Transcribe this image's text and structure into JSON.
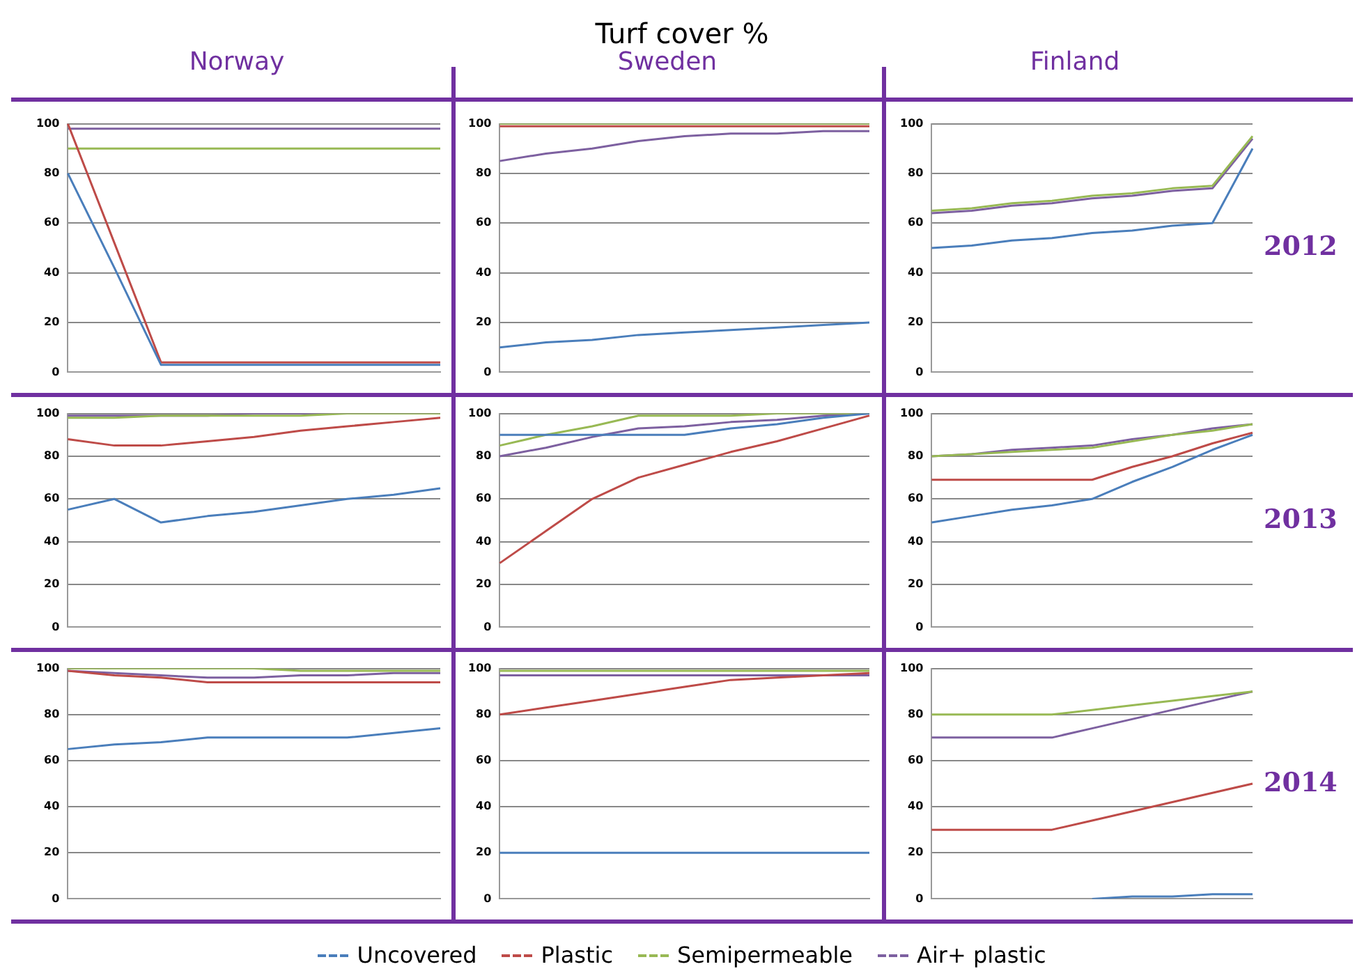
{
  "chart_data": [
    {
      "type": "line",
      "title": "Norway",
      "annotations": [
        "Turf cover %"
      ],
      "categories": [
        null,
        null,
        null,
        null,
        null,
        null,
        null,
        null,
        null
      ],
      "ylim": [
        0,
        100
      ],
      "yticks": [
        0,
        20,
        40,
        60,
        80,
        100
      ],
      "grid": "y",
      "tick_labels": "y",
      "series": [
        {
          "color": "#4a7ebb",
          "values": [
            80,
            42,
            3,
            3,
            3,
            3,
            3,
            3,
            3
          ]
        },
        {
          "color": "#be4b48",
          "values": [
            100,
            52,
            4,
            4,
            4,
            4,
            4,
            4,
            4
          ]
        },
        {
          "color": "#98b954",
          "values": [
            90,
            90,
            90,
            90,
            90,
            90,
            90,
            90,
            90
          ]
        },
        {
          "color": "#7d60a0",
          "values": [
            98,
            98,
            98,
            98,
            98,
            98,
            98,
            98,
            98
          ]
        }
      ]
    },
    {
      "type": "line",
      "title": "Sweden",
      "categories": [
        null,
        null,
        null,
        null,
        null,
        null,
        null,
        null,
        null
      ],
      "ylim": [
        0,
        100
      ],
      "yticks": [
        0,
        20,
        40,
        60,
        80,
        100
      ],
      "grid": "y",
      "tick_labels": "y",
      "series": [
        {
          "color": "#4a7ebb",
          "values": [
            10,
            12,
            13,
            15,
            16,
            17,
            18,
            19,
            20
          ]
        },
        {
          "color": "#be4b48",
          "values": [
            99,
            99,
            99,
            99,
            99,
            99,
            99,
            99,
            99
          ]
        },
        {
          "color": "#98b954",
          "values": [
            100,
            100,
            100,
            100,
            100,
            100,
            100,
            100,
            100
          ]
        },
        {
          "color": "#7d60a0",
          "values": [
            85,
            88,
            90,
            93,
            95,
            96,
            96,
            97,
            97
          ]
        }
      ]
    },
    {
      "type": "line",
      "title": "Finland",
      "annotations": [
        "2012"
      ],
      "categories": [
        null,
        null,
        null,
        null,
        null,
        null,
        null,
        null,
        null
      ],
      "ylim": [
        0,
        100
      ],
      "yticks": [
        0,
        20,
        40,
        60,
        80,
        100
      ],
      "grid": "y",
      "tick_labels": "y",
      "series": [
        {
          "color": "#4a7ebb",
          "values": [
            50,
            51,
            53,
            54,
            56,
            57,
            59,
            60,
            90
          ]
        },
        {
          "color": "#98b954",
          "values": [
            65,
            66,
            68,
            69,
            71,
            72,
            74,
            75,
            95
          ]
        },
        {
          "color": "#7d60a0",
          "values": [
            64,
            65,
            67,
            68,
            70,
            71,
            73,
            74,
            94
          ]
        }
      ]
    },
    {
      "type": "line",
      "categories": [
        null,
        null,
        null,
        null,
        null,
        null,
        null,
        null,
        null
      ],
      "ylim": [
        0,
        100
      ],
      "yticks": [
        0,
        20,
        40,
        60,
        80,
        100
      ],
      "grid": "y",
      "tick_labels": "y",
      "series": [
        {
          "color": "#4a7ebb",
          "values": [
            55,
            60,
            49,
            52,
            54,
            57,
            60,
            62,
            65
          ]
        },
        {
          "color": "#be4b48",
          "values": [
            88,
            85,
            85,
            87,
            89,
            92,
            94,
            96,
            98
          ]
        },
        {
          "color": "#98b954",
          "values": [
            98,
            98,
            99,
            99,
            99,
            99,
            100,
            100,
            100
          ]
        },
        {
          "color": "#7d60a0",
          "values": [
            99,
            99,
            99,
            99,
            100,
            100,
            100,
            100,
            100
          ]
        }
      ]
    },
    {
      "type": "line",
      "categories": [
        null,
        null,
        null,
        null,
        null,
        null,
        null,
        null,
        null
      ],
      "ylim": [
        0,
        100
      ],
      "yticks": [
        0,
        20,
        40,
        60,
        80,
        100
      ],
      "grid": "y",
      "tick_labels": "y",
      "series": [
        {
          "color": "#4a7ebb",
          "values": [
            90,
            90,
            90,
            90,
            90,
            93,
            95,
            98,
            100
          ]
        },
        {
          "color": "#be4b48",
          "values": [
            30,
            45,
            60,
            70,
            76,
            82,
            87,
            93,
            99
          ]
        },
        {
          "color": "#98b954",
          "values": [
            85,
            90,
            94,
            99,
            99,
            99,
            100,
            100,
            100
          ]
        },
        {
          "color": "#7d60a0",
          "values": [
            80,
            84,
            89,
            93,
            94,
            96,
            97,
            99,
            100
          ]
        }
      ]
    },
    {
      "type": "line",
      "annotations": [
        "2013"
      ],
      "categories": [
        null,
        null,
        null,
        null,
        null,
        null,
        null,
        null,
        null
      ],
      "ylim": [
        0,
        100
      ],
      "yticks": [
        0,
        20,
        40,
        60,
        80,
        100
      ],
      "grid": "y",
      "tick_labels": "y",
      "series": [
        {
          "color": "#4a7ebb",
          "values": [
            49,
            52,
            55,
            57,
            60,
            68,
            75,
            83,
            90
          ]
        },
        {
          "color": "#be4b48",
          "values": [
            69,
            69,
            69,
            69,
            69,
            75,
            80,
            86,
            91
          ]
        },
        {
          "color": "#98b954",
          "values": [
            80,
            81,
            82,
            83,
            84,
            87,
            90,
            92,
            95
          ]
        },
        {
          "color": "#7d60a0",
          "values": [
            80,
            81,
            83,
            84,
            85,
            88,
            90,
            93,
            95
          ]
        }
      ]
    },
    {
      "type": "line",
      "categories": [
        null,
        null,
        null,
        null,
        null,
        null,
        null,
        null,
        null
      ],
      "ylim": [
        0,
        100
      ],
      "yticks": [
        0,
        20,
        40,
        60,
        80,
        100
      ],
      "grid": "y",
      "tick_labels": "y",
      "series": [
        {
          "color": "#4a7ebb",
          "values": [
            65,
            67,
            68,
            70,
            70,
            70,
            70,
            72,
            74
          ]
        },
        {
          "color": "#be4b48",
          "values": [
            99,
            97,
            96,
            94,
            94,
            94,
            94,
            94,
            94
          ]
        },
        {
          "color": "#98b954",
          "values": [
            100,
            100,
            100,
            100,
            100,
            99,
            99,
            99,
            99
          ]
        },
        {
          "color": "#7d60a0",
          "values": [
            99,
            98,
            97,
            96,
            96,
            97,
            97,
            98,
            98
          ]
        }
      ]
    },
    {
      "type": "line",
      "legend": "bottom",
      "categories": [
        null,
        null,
        null,
        null,
        null,
        null,
        null,
        null,
        null
      ],
      "ylim": [
        0,
        100
      ],
      "yticks": [
        0,
        20,
        40,
        60,
        80,
        100
      ],
      "grid": "y",
      "tick_labels": "y",
      "series": [
        {
          "name": "Uncovered",
          "color": "#4a7ebb",
          "values": [
            20,
            20,
            20,
            20,
            20,
            20,
            20,
            20,
            20
          ]
        },
        {
          "name": "Plastic",
          "color": "#be4b48",
          "values": [
            80,
            83,
            86,
            89,
            92,
            95,
            96,
            97,
            98
          ]
        },
        {
          "name": "Semipermeable",
          "color": "#98b954",
          "values": [
            99,
            99,
            99,
            99,
            99,
            99,
            99,
            99,
            99
          ]
        },
        {
          "name": "Air+ plastic",
          "color": "#7d60a0",
          "values": [
            97,
            97,
            97,
            97,
            97,
            97,
            97,
            97,
            97
          ]
        }
      ]
    },
    {
      "type": "line",
      "annotations": [
        "2014"
      ],
      "categories": [
        null,
        null,
        null,
        null,
        null,
        null,
        null,
        null,
        null
      ],
      "ylim": [
        0,
        100
      ],
      "yticks": [
        0,
        20,
        40,
        60,
        80,
        100
      ],
      "grid": "y",
      "tick_labels": "y",
      "series": [
        {
          "color": "#4a7ebb",
          "values": [
            null,
            null,
            null,
            null,
            0,
            1,
            1,
            2,
            2
          ]
        },
        {
          "color": "#be4b48",
          "values": [
            30,
            30,
            30,
            30,
            34,
            38,
            42,
            46,
            50
          ]
        },
        {
          "color": "#98b954",
          "values": [
            80,
            80,
            80,
            80,
            82,
            84,
            86,
            88,
            90
          ]
        },
        {
          "color": "#7d60a0",
          "values": [
            70,
            70,
            70,
            70,
            74,
            78,
            82,
            86,
            90
          ]
        }
      ]
    }
  ]
}
